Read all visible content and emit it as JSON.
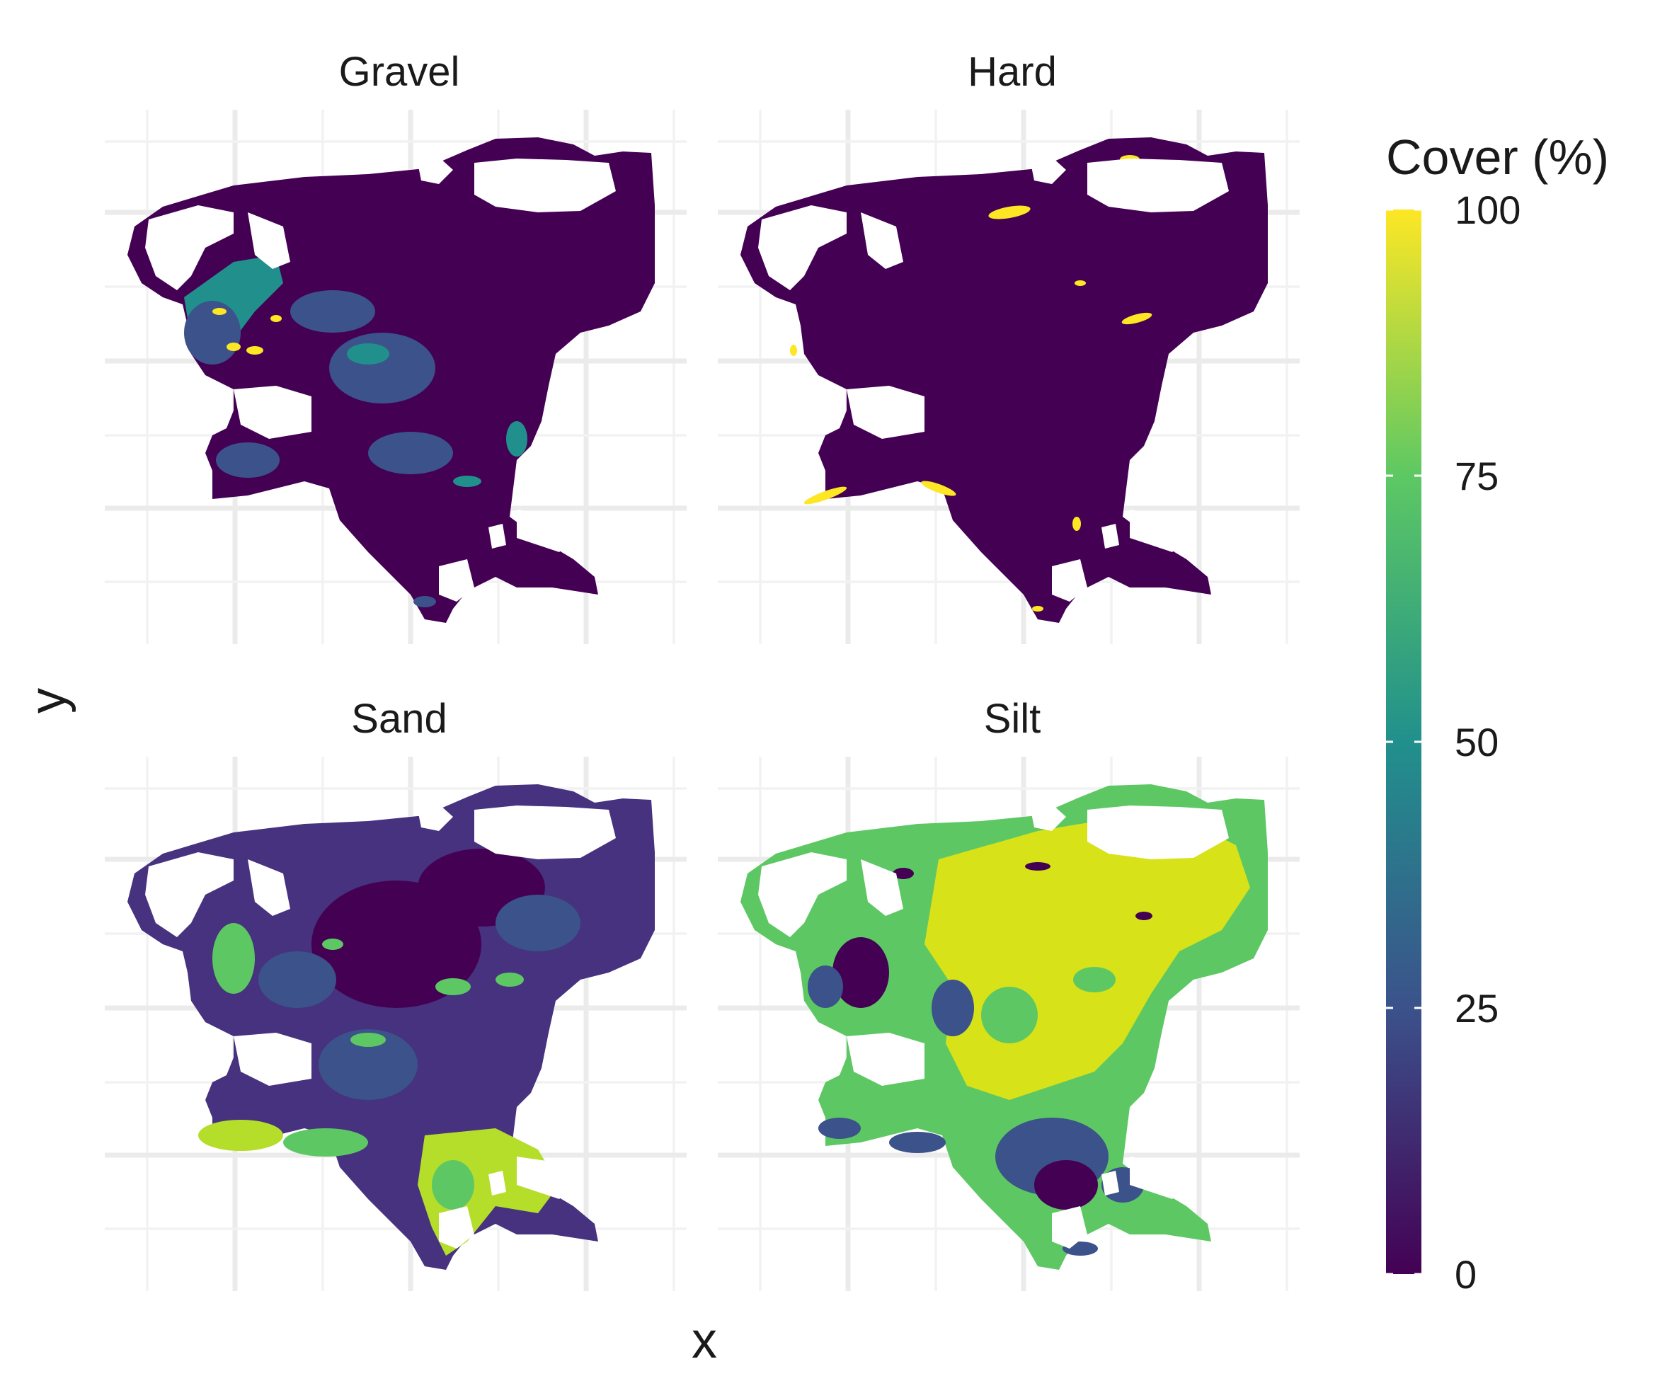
{
  "figure": {
    "xlabel": "x",
    "ylabel": "y",
    "panels": [
      {
        "id": "gravel",
        "title": "Gravel",
        "low_class": "very low",
        "notes": "mostly near 0%; higher values along western/southwestern margins and coastal patches"
      },
      {
        "id": "hard",
        "title": "Hard",
        "low_class": "very low",
        "notes": "near 0% almost everywhere; isolated 100% patches along coast and northern inlets"
      },
      {
        "id": "sand",
        "title": "Sand",
        "low_class": "low",
        "notes": "mostly 5-30%; high (80-95%) in southern lobe and southwestern coast"
      },
      {
        "id": "silt",
        "title": "Silt",
        "low_class": "high",
        "notes": "mostly 70-95%; lower values in southern basin and western inlets"
      }
    ],
    "legend": {
      "title": "Cover (%)",
      "ticks": [
        "0",
        "25",
        "50",
        "75",
        "100"
      ],
      "min": 0,
      "max": 100,
      "palette": "viridis",
      "stops": [
        "#440154",
        "#3b528b",
        "#21908c",
        "#5dc863",
        "#fde725"
      ]
    }
  },
  "colors": {
    "gravel_base": "#440154",
    "gravel_mid": "#3b528b",
    "gravel_high": "#21908c",
    "gravel_hot": "#fde725",
    "hard_base": "#440154",
    "hard_hot": "#fde725",
    "sand_base": "#46327e",
    "sand_low": "#440154",
    "sand_mid": "#3b528b",
    "sand_green": "#5dc863",
    "sand_high": "#b5de2b",
    "silt_base": "#5dc863",
    "silt_high": "#d7e219",
    "silt_low": "#440154",
    "silt_mid": "#3b528b"
  }
}
